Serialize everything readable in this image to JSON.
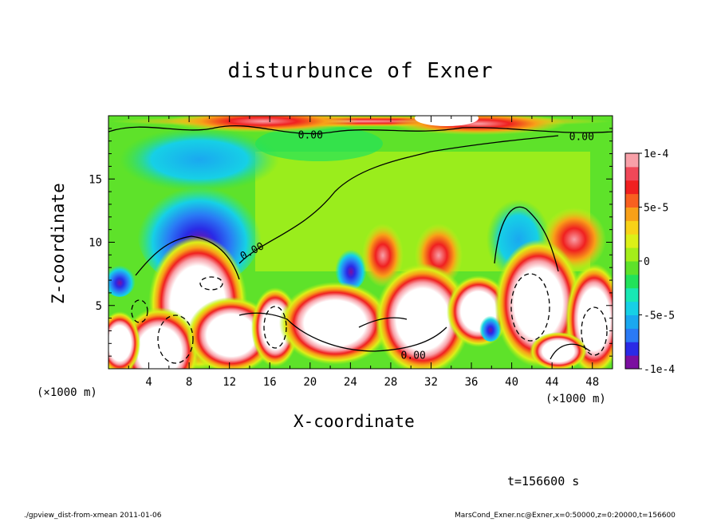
{
  "chart_data": {
    "type": "heatmap",
    "title": "disturbunce of Exner",
    "xlabel": "X-coordinate",
    "ylabel": "Z-coordinate",
    "x_unit": "(×1000 m)",
    "xlim": [
      0,
      50
    ],
    "ylim": [
      0,
      20
    ],
    "x_ticks": [
      "4",
      "8",
      "12",
      "16",
      "20",
      "24",
      "28",
      "32",
      "36",
      "40",
      "44",
      "48"
    ],
    "y_ticks": [
      "5",
      "10",
      "15"
    ],
    "colorbar": {
      "range": [
        -0.0001,
        0.0001
      ],
      "tick_labels": [
        "1e-4",
        "5e-5",
        "0",
        "-5e-5",
        "-1e-4"
      ],
      "colors": [
        "#7b0fa0",
        "#2a2ae6",
        "#2a7af5",
        "#1aa8f0",
        "#16d0e6",
        "#18e8b4",
        "#22e25a",
        "#5ee22a",
        "#a4ee1a",
        "#dcf018",
        "#f8d218",
        "#f8a018",
        "#f86020",
        "#f02020",
        "#f04858",
        "#f8a0a8"
      ]
    },
    "contour_labels": [
      "0.00",
      "0.00",
      "0.00",
      "0.00"
    ],
    "time_label": "t=156600 s",
    "footer_left": "./gpview_dist-from-xmean  2011-01-06",
    "footer_right": "MarsCond_Exner.nc@Exner,x=0:50000,z=0:20000,t=156600"
  }
}
